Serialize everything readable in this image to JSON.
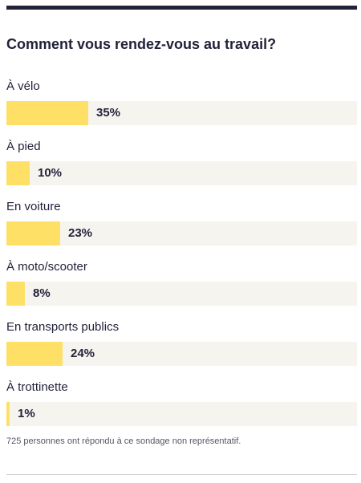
{
  "title": "Comment vous rendez-vous au travail?",
  "footnote": "725 personnes ont répondu à ce sondage non représentatif.",
  "colors": {
    "bar": "#ffe066",
    "track": "#f6f4ef",
    "text": "#22223b"
  },
  "chart_data": {
    "type": "bar",
    "title": "Comment vous rendez-vous au travail?",
    "orientation": "horizontal",
    "categories": [
      "À vélo",
      "À pied",
      "En voiture",
      "À moto/scooter",
      "En transports publics",
      "À trottinette"
    ],
    "values": [
      35,
      10,
      23,
      8,
      24,
      1
    ],
    "value_labels": [
      "35%",
      "10%",
      "23%",
      "8%",
      "24%",
      "1%"
    ],
    "unit": "%",
    "xlim": [
      0,
      150
    ]
  }
}
